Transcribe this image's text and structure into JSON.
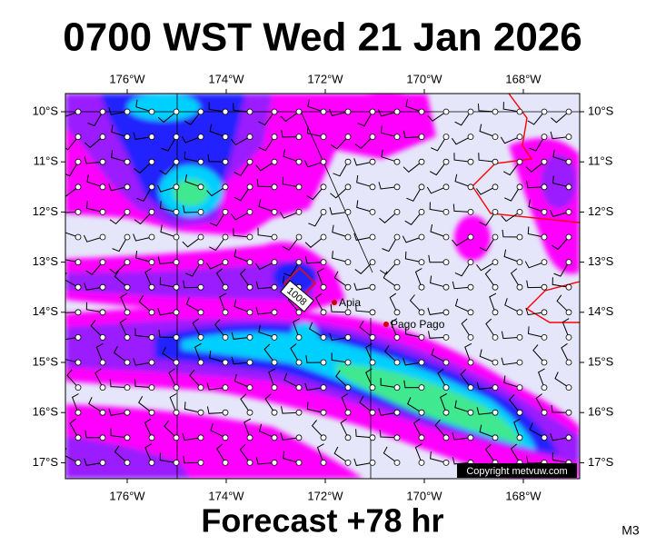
{
  "header": {
    "title": "0700 WST Wed 21 Jan 2026"
  },
  "map": {
    "lon_labels_top": [
      "176°W",
      "174°W",
      "172°W",
      "170°W",
      "168°W"
    ],
    "lon_labels_bottom": [
      "176°W",
      "174°W",
      "172°W",
      "170°W",
      "168°W"
    ],
    "lat_labels_left": [
      "10°S",
      "11°S",
      "12°S",
      "13°S",
      "14°S",
      "15°S",
      "16°S",
      "17°S"
    ],
    "lat_labels_right": [
      "10°S",
      "11°S",
      "12°S",
      "13°S",
      "14°S",
      "15°S",
      "16°S",
      "17°S"
    ],
    "places": [
      "Apia",
      "Pago Pago"
    ],
    "pressure_label": "1008",
    "copyright": "Copyright metvuw.com"
  },
  "footer": {
    "caption": "Forecast +78 hr",
    "model": "M3"
  }
}
